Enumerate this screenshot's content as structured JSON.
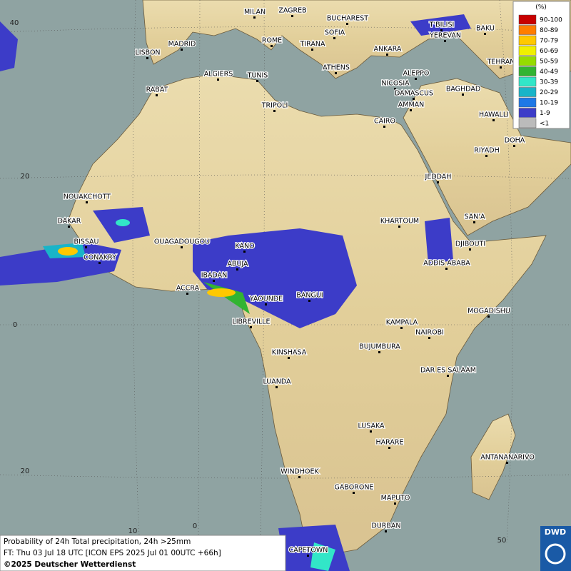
{
  "map": {
    "cities": [
      "MILAN",
      "ZAGREB",
      "BUCHAREST",
      "SOFIA",
      "ROME",
      "TIRANA",
      "ANKARA",
      "T'BILISI",
      "BAKU",
      "YEREVAN",
      "LISBON",
      "MADRID",
      "ATHENS",
      "TEHRAN",
      "ALGIERS",
      "TUNIS",
      "ALEPPO",
      "NICOSIA",
      "BAGHDAD",
      "RABAT",
      "DAMASCUS",
      "AMMAN",
      "TRIPOLI",
      "HAWALLI",
      "CAIRO",
      "DOHA",
      "RIYADH",
      "JEDDAH",
      "NOUAKCHOTT",
      "SAN'A",
      "DAKAR",
      "KHARTOUM",
      "BISSAU",
      "OUAGADOUGOU",
      "DJIBOUTI",
      "KANO",
      "CONAKRY",
      "ABUJA",
      "ADDIS ABABA",
      "IBADAN",
      "ACCRA",
      "YAOUNDE",
      "BANGUI",
      "MOGADISHU",
      "LIBREVILLE",
      "KAMPALA",
      "NAIROBI",
      "KINSHASA",
      "BUJUMBURA",
      "DAR ES SALAAM",
      "LUANDA",
      "LUSAKA",
      "HARARE",
      "ANTANANARIVO",
      "WINDHOEK",
      "GABORONE",
      "MAPUTO",
      "DURBAN",
      "CAPETOWN"
    ],
    "lat_labels": [
      "40",
      "20",
      "0",
      "20"
    ],
    "lon_labels": [
      "10",
      "0",
      "50"
    ]
  },
  "legend": {
    "title": "(%)",
    "items": [
      {
        "label": "90-100",
        "color": "#c80000"
      },
      {
        "label": "80-89",
        "color": "#ff7d00"
      },
      {
        "label": "70-79",
        "color": "#ffc800"
      },
      {
        "label": "60-69",
        "color": "#f0f000"
      },
      {
        "label": "50-59",
        "color": "#96dc00"
      },
      {
        "label": "40-49",
        "color": "#32b432"
      },
      {
        "label": "30-39",
        "color": "#32e6c8"
      },
      {
        "label": "20-29",
        "color": "#19b4c8"
      },
      {
        "label": "10-19",
        "color": "#1e78e6"
      },
      {
        "label": "1-9",
        "color": "#3c3cc8"
      },
      {
        "label": "<1",
        "color": "#bbbbbb"
      }
    ]
  },
  "footer": {
    "lines": [
      "Probability of 24h Total precipitation, 24h >25mm",
      "FT: Thu 03 Jul 18 UTC [ICON EPS 2025 Jul 01 00UTC +66h]",
      "©2025 Deutscher Wetterdienst"
    ]
  },
  "logo": "DWD"
}
